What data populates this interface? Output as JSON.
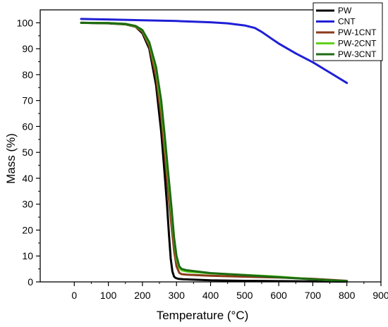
{
  "chart_data": {
    "type": "line",
    "title": "",
    "xlabel": "Temperature (°C)",
    "ylabel": "Mass (%)",
    "xlim": [
      -100,
      900
    ],
    "ylim": [
      0,
      105
    ],
    "xticks": [
      0,
      100,
      200,
      300,
      400,
      500,
      600,
      700,
      800,
      900
    ],
    "yticks": [
      0,
      10,
      20,
      30,
      40,
      50,
      60,
      70,
      80,
      90,
      100
    ],
    "grid": false,
    "legend": "top-right",
    "series": [
      {
        "name": "PW",
        "color": "#000000",
        "x": [
          20,
          100,
          150,
          180,
          200,
          220,
          240,
          255,
          265,
          272,
          278,
          283,
          288,
          293,
          298,
          305,
          320,
          400,
          500,
          600,
          700,
          800
        ],
        "y": [
          100,
          99.8,
          99.4,
          98.5,
          96,
          90,
          76,
          58,
          42,
          30,
          18,
          9,
          4,
          2,
          1.5,
          1.2,
          1,
          0.6,
          0.4,
          0.3,
          0.2,
          0.1
        ]
      },
      {
        "name": "CNT",
        "color": "#1f1fd6",
        "x": [
          20,
          100,
          200,
          300,
          400,
          450,
          500,
          530,
          550,
          580,
          600,
          650,
          700,
          750,
          800
        ],
        "y": [
          101.5,
          101.3,
          101,
          100.7,
          100.2,
          99.8,
          99,
          98,
          96.5,
          93.8,
          92,
          88.2,
          84.8,
          80.8,
          76.8
        ]
      },
      {
        "name": "PW-1CNT",
        "color": "#8b3a1a",
        "x": [
          20,
          100,
          150,
          180,
          200,
          220,
          240,
          255,
          265,
          275,
          285,
          293,
          300,
          308,
          315,
          330,
          400,
          500,
          600,
          700,
          800
        ],
        "y": [
          100,
          99.9,
          99.5,
          98.5,
          96.5,
          91,
          79,
          64,
          50,
          36,
          22,
          12,
          6,
          3.5,
          3,
          2.8,
          2.4,
          2,
          1.7,
          1.2,
          0.4
        ]
      },
      {
        "name": "PW-2CNT",
        "color": "#5ed11c",
        "x": [
          20,
          100,
          150,
          180,
          200,
          220,
          240,
          255,
          265,
          275,
          285,
          293,
          300,
          308,
          315,
          330,
          400,
          500,
          600,
          700,
          800
        ],
        "y": [
          100,
          99.9,
          99.5,
          98.7,
          97,
          92,
          82,
          68,
          55,
          41,
          27,
          16,
          9,
          5.5,
          4.5,
          4,
          3.3,
          2.7,
          2,
          1,
          0.2
        ]
      },
      {
        "name": "PW-3CNT",
        "color": "#1d6b12",
        "x": [
          20,
          100,
          150,
          180,
          200,
          220,
          240,
          255,
          265,
          275,
          285,
          293,
          300,
          308,
          315,
          330,
          400,
          500,
          600,
          700,
          800
        ],
        "y": [
          100,
          99.9,
          99.6,
          98.8,
          97.2,
          92.5,
          83,
          70,
          57,
          43,
          29,
          17,
          10,
          6,
          5,
          4.5,
          3.4,
          2.6,
          1.8,
          1,
          0.3
        ]
      }
    ]
  }
}
